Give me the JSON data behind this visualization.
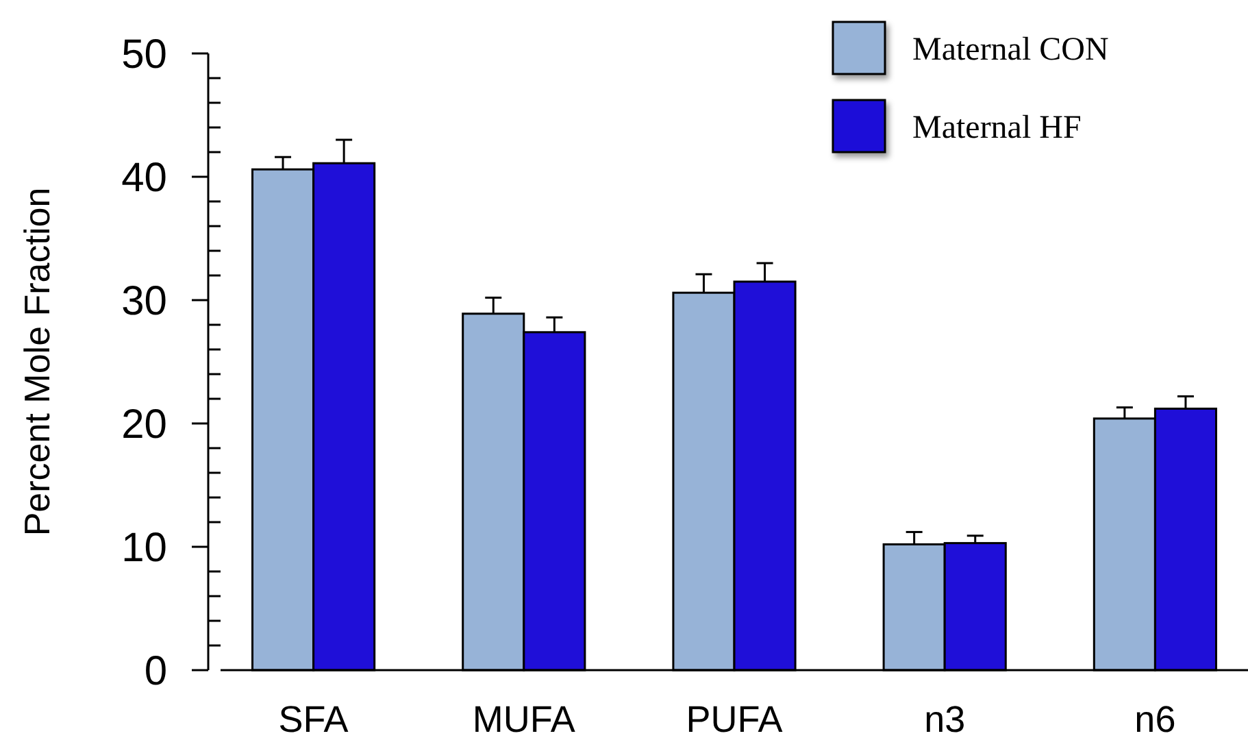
{
  "chart_data": {
    "type": "bar",
    "ylabel": "Percent Mole Fraction",
    "categories": [
      "SFA",
      "MUFA",
      "PUFA",
      "n3",
      "n6"
    ],
    "series": [
      {
        "name": "Maternal CON",
        "color": "#97b3d7",
        "values": [
          40.6,
          28.9,
          30.6,
          10.2,
          20.4
        ],
        "errors": [
          [
            40.6,
            41.6
          ],
          [
            28.9,
            30.2
          ],
          [
            30.6,
            32.1
          ],
          [
            10.2,
            11.2
          ],
          [
            20.4,
            21.3
          ]
        ]
      },
      {
        "name": "Maternal HF",
        "color": "#1f0fd8",
        "values": [
          41.1,
          27.4,
          31.5,
          10.3,
          21.2
        ],
        "errors": [
          [
            41.1,
            43.0
          ],
          [
            27.4,
            28.6
          ],
          [
            31.5,
            33.0
          ],
          [
            10.3,
            10.9
          ],
          [
            21.2,
            22.2
          ]
        ]
      }
    ],
    "ylim": [
      0,
      50
    ],
    "yticks": [
      0,
      {
        "value": 2,
        "label": null
      },
      {
        "value": 4,
        "label": null
      },
      {
        "value": 6,
        "label": null
      },
      {
        "value": 8,
        "label": null
      },
      10,
      {
        "value": 12,
        "label": null
      },
      {
        "value": 14,
        "label": null
      },
      {
        "value": 16,
        "label": null
      },
      {
        "value": 18,
        "label": null
      },
      20,
      {
        "value": 22,
        "label": null
      },
      {
        "value": 24,
        "label": null
      },
      {
        "value": 26,
        "label": null
      },
      {
        "value": 28,
        "label": null
      },
      30,
      {
        "value": 32,
        "label": null
      },
      {
        "value": 34,
        "label": null
      },
      {
        "value": 36,
        "label": null
      },
      {
        "value": 38,
        "label": null
      },
      40,
      {
        "value": 42,
        "label": null
      },
      {
        "value": 44,
        "label": null
      },
      {
        "value": 46,
        "label": null
      },
      {
        "value": 48,
        "label": null
      },
      50
    ],
    "grid": false,
    "legend": "top right"
  }
}
